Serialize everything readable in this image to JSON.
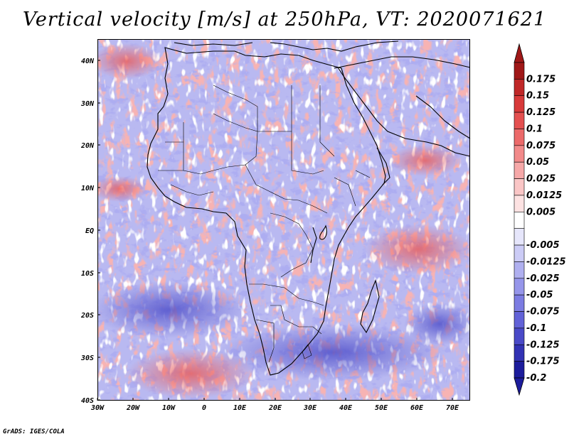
{
  "title": "Vertical velocity [m/s] at 250hPa, VT: 2020071621",
  "credit": "GrADS: IGES/COLA",
  "map": {
    "lon_range": [
      -30,
      75
    ],
    "lat_range": [
      -40,
      45
    ],
    "lon_ticks": [
      {
        "value": -30,
        "label": "30W"
      },
      {
        "value": -20,
        "label": "20W"
      },
      {
        "value": -10,
        "label": "10W"
      },
      {
        "value": 0,
        "label": "0"
      },
      {
        "value": 10,
        "label": "10E"
      },
      {
        "value": 20,
        "label": "20E"
      },
      {
        "value": 30,
        "label": "30E"
      },
      {
        "value": 40,
        "label": "40E"
      },
      {
        "value": 50,
        "label": "50E"
      },
      {
        "value": 60,
        "label": "60E"
      },
      {
        "value": 70,
        "label": "70E"
      }
    ],
    "lat_ticks": [
      {
        "value": 40,
        "label": "40N"
      },
      {
        "value": 30,
        "label": "30N"
      },
      {
        "value": 20,
        "label": "20N"
      },
      {
        "value": 10,
        "label": "10N"
      },
      {
        "value": 0,
        "label": "EQ"
      },
      {
        "value": -10,
        "label": "10S"
      },
      {
        "value": -20,
        "label": "20S"
      },
      {
        "value": -30,
        "label": "30S"
      },
      {
        "value": -40,
        "label": "40S"
      }
    ]
  },
  "colorbar": {
    "levels": [
      {
        "label": "0.175",
        "color": "#a01818"
      },
      {
        "label": "0.15",
        "color": "#c02828"
      },
      {
        "label": "0.125",
        "color": "#d83a3a"
      },
      {
        "label": "0.1",
        "color": "#e45050"
      },
      {
        "label": "0.075",
        "color": "#ec6a6a"
      },
      {
        "label": "0.05",
        "color": "#f28a8a"
      },
      {
        "label": "0.025",
        "color": "#f6a8a8"
      },
      {
        "label": "0.0125",
        "color": "#fac6c6"
      },
      {
        "label": "0.005",
        "color": "#fde2e2"
      },
      {
        "label": "",
        "color": "#ffffff"
      },
      {
        "label": "-0.005",
        "color": "#e6e6fb"
      },
      {
        "label": "-0.0125",
        "color": "#ccccf6"
      },
      {
        "label": "-0.025",
        "color": "#b0b0f0"
      },
      {
        "label": "-0.05",
        "color": "#9696ea"
      },
      {
        "label": "-0.075",
        "color": "#7c7ce2"
      },
      {
        "label": "-0.1",
        "color": "#6262d8"
      },
      {
        "label": "-0.125",
        "color": "#4a4ac8"
      },
      {
        "label": "-0.175",
        "color": "#3232b4"
      },
      {
        "label": "-0.2",
        "color": "#1c1c9c"
      }
    ],
    "top_color": "#a01818",
    "bottom_color": "#1c1c9c"
  }
}
